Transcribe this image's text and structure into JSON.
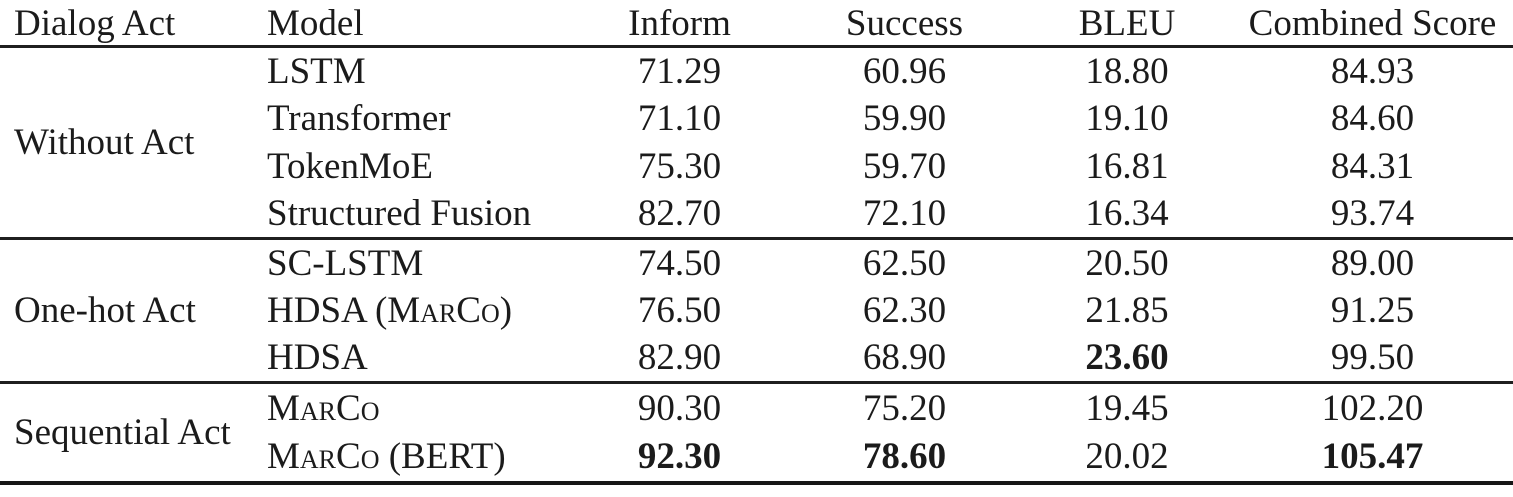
{
  "table": {
    "headers": [
      "Dialog Act",
      "Model",
      "Inform",
      "Success",
      "BLEU",
      "Combined Score"
    ],
    "metric_keys": [
      "inform",
      "success",
      "bleu",
      "combined"
    ],
    "groups": [
      {
        "dialog_act": "Without Act",
        "rows": [
          {
            "model": "LSTM",
            "smallcaps": false,
            "values": {
              "inform": "71.29",
              "success": "60.96",
              "bleu": "18.80",
              "combined": "84.93"
            },
            "bold": []
          },
          {
            "model": "Transformer",
            "smallcaps": false,
            "values": {
              "inform": "71.10",
              "success": "59.90",
              "bleu": "19.10",
              "combined": "84.60"
            },
            "bold": []
          },
          {
            "model": "TokenMoE",
            "smallcaps": false,
            "values": {
              "inform": "75.30",
              "success": "59.70",
              "bleu": "16.81",
              "combined": "84.31"
            },
            "bold": []
          },
          {
            "model": "Structured Fusion",
            "smallcaps": false,
            "values": {
              "inform": "82.70",
              "success": "72.10",
              "bleu": "16.34",
              "combined": "93.74"
            },
            "bold": []
          }
        ]
      },
      {
        "dialog_act": "One-hot Act",
        "rows": [
          {
            "model": "SC-LSTM",
            "smallcaps": false,
            "values": {
              "inform": "74.50",
              "success": "62.50",
              "bleu": "20.50",
              "combined": "89.00"
            },
            "bold": []
          },
          {
            "model": "HDSA (MarCo)",
            "smallcaps": true,
            "values": {
              "inform": "76.50",
              "success": "62.30",
              "bleu": "21.85",
              "combined": "91.25"
            },
            "bold": []
          },
          {
            "model": "HDSA",
            "smallcaps": false,
            "values": {
              "inform": "82.90",
              "success": "68.90",
              "bleu": "23.60",
              "combined": "99.50"
            },
            "bold": [
              "bleu"
            ]
          }
        ]
      },
      {
        "dialog_act": "Sequential Act",
        "rows": [
          {
            "model": "MarCo",
            "smallcaps": true,
            "values": {
              "inform": "90.30",
              "success": "75.20",
              "bleu": "19.45",
              "combined": "102.20"
            },
            "bold": []
          },
          {
            "model": "MarCo (BERT)",
            "smallcaps": true,
            "values": {
              "inform": "92.30",
              "success": "78.60",
              "bleu": "20.02",
              "combined": "105.47"
            },
            "bold": [
              "inform",
              "success",
              "combined"
            ]
          }
        ]
      }
    ],
    "colors": {
      "text": "#1b1b1b",
      "rule": "#1f1f1f",
      "background": "#ffffff"
    }
  }
}
